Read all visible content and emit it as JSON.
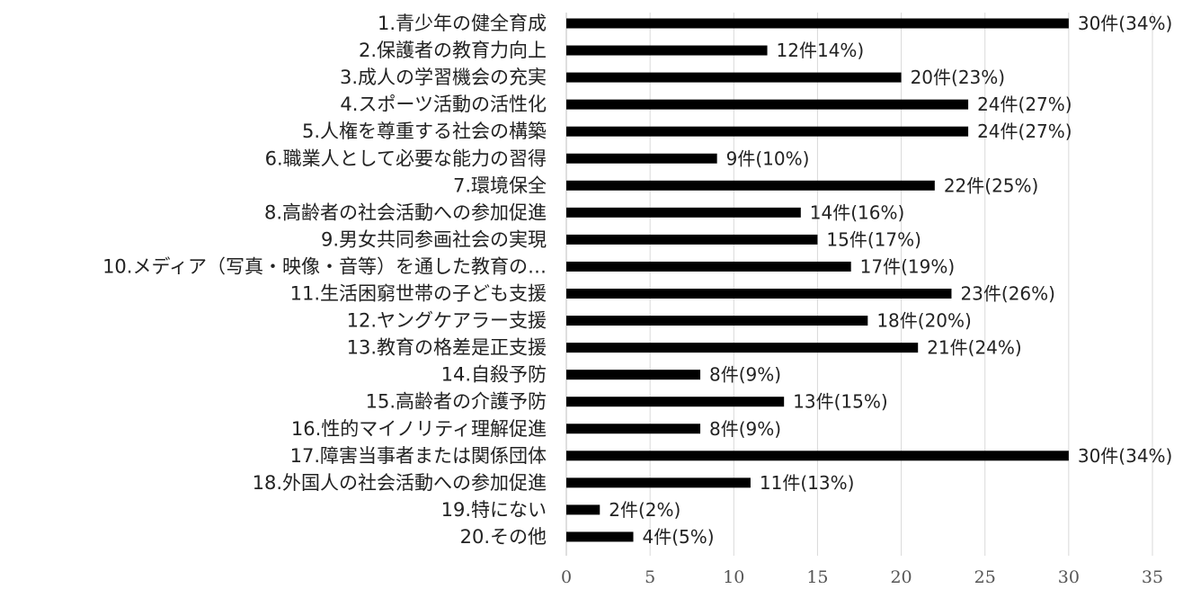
{
  "chart_data": {
    "type": "bar",
    "orientation": "horizontal",
    "title": "",
    "xlabel": "",
    "ylabel": "",
    "categories": [
      "1.青少年の健全育成",
      "2.保護者の教育力向上",
      "3.成人の学習機会の充実",
      "4.スポーツ活動の活性化",
      "5.人権を尊重する社会の構築",
      "6.職業人として必要な能力の習得",
      "7.環境保全",
      "8.高齢者の社会活動への参加促進",
      "9.男女共同参画社会の実現",
      "10.メディア（写真・映像・音等）を通した教育の…",
      "11.生活困窮世帯の子ども支援",
      "12.ヤングケアラー支援",
      "13.教育の格差是正支援",
      "14.自殺予防",
      "15.高齢者の介護予防",
      "16.性的マイノリティ理解促進",
      "17.障害当事者または関係団体",
      "18.外国人の社会活動への参加促進",
      "19.特にない",
      "20.その他"
    ],
    "values": [
      30,
      12,
      20,
      24,
      24,
      9,
      22,
      14,
      15,
      17,
      23,
      18,
      21,
      8,
      13,
      8,
      30,
      11,
      2,
      4
    ],
    "data_labels": [
      "30件(34%)",
      "12件14%)",
      "20件(23%)",
      "24件(27%)",
      "24件(27%)",
      "9件(10%)",
      "22件(25%)",
      "14件(16%)",
      "15件(17%)",
      "17件(19%)",
      "23件(26%)",
      "18件(20%)",
      "21件(24%)",
      "8件(9%)",
      "13件(15%)",
      "8件(9%)",
      "30件(34%)",
      "11件(13%)",
      "2件(2%)",
      "4件(5%)"
    ],
    "xlim": [
      0,
      35
    ],
    "xticks": [
      0,
      5,
      10,
      15,
      20,
      25,
      30,
      35
    ],
    "grid": true,
    "legend": "none",
    "colors": {
      "bar": "#000000",
      "grid": "#d9d9d9",
      "axis": "#bfbfbf"
    }
  }
}
